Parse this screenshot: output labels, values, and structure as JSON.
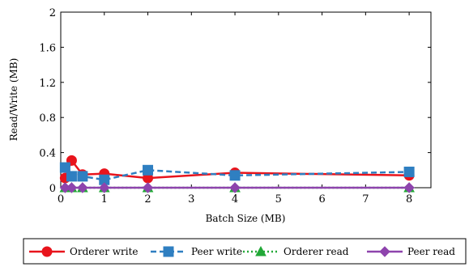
{
  "chart_data": {
    "type": "line",
    "xlabel": "Batch Size (MB)",
    "ylabel": "Read/Write (MB)",
    "xlim": [
      0,
      8.5
    ],
    "ylim": [
      0,
      2
    ],
    "xticks": [
      0,
      1,
      2,
      3,
      4,
      5,
      6,
      7,
      8
    ],
    "yticks": [
      0,
      0.4,
      0.8,
      1.2,
      1.6,
      2
    ],
    "ytick_labels": [
      "0",
      "0.4",
      "0.8",
      "1.2",
      "1.6",
      "2"
    ],
    "grid": false,
    "legend_position": "bottom",
    "x": [
      0.1,
      0.25,
      0.5,
      1,
      2,
      4,
      8
    ],
    "series": [
      {
        "name": "Orderer write",
        "values": [
          0.11,
          0.31,
          0.15,
          0.16,
          0.11,
          0.17,
          0.14
        ],
        "color": "#e8141c",
        "dash": "solid",
        "marker": "circle"
      },
      {
        "name": "Peer write",
        "values": [
          0.23,
          0.13,
          0.13,
          0.09,
          0.2,
          0.14,
          0.18
        ],
        "color": "#2f7fc1",
        "dash": "dashed",
        "marker": "square"
      },
      {
        "name": "Orderer read",
        "values": [
          0,
          0,
          0,
          0,
          0,
          0,
          0
        ],
        "color": "#22a837",
        "dash": "dotted",
        "marker": "triangle"
      },
      {
        "name": "Peer read",
        "values": [
          0,
          0,
          0,
          0,
          0,
          0,
          0
        ],
        "color": "#8e44ad",
        "dash": "solid",
        "marker": "diamond"
      }
    ]
  }
}
